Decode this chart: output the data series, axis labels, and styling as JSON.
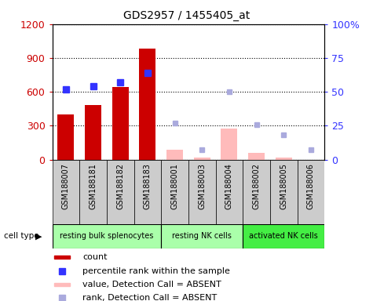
{
  "title": "GDS2957 / 1455405_at",
  "samples": [
    "GSM188007",
    "GSM188181",
    "GSM188182",
    "GSM188183",
    "GSM188001",
    "GSM188003",
    "GSM188004",
    "GSM188002",
    "GSM188005",
    "GSM188006"
  ],
  "cell_types": [
    {
      "label": "resting bulk splenocytes",
      "start": 0,
      "end": 3
    },
    {
      "label": "resting NK cells",
      "start": 4,
      "end": 6
    },
    {
      "label": "activated NK cells",
      "start": 7,
      "end": 9
    }
  ],
  "cell_type_colors": [
    "#aaffaa",
    "#aaffaa",
    "#44ee44"
  ],
  "count_values": [
    400,
    480,
    640,
    980,
    null,
    null,
    null,
    null,
    null,
    null
  ],
  "percentile_values": [
    52,
    54,
    57,
    64,
    null,
    null,
    null,
    null,
    null,
    null
  ],
  "absent_value_values": [
    null,
    null,
    null,
    null,
    90,
    15,
    275,
    60,
    15,
    null
  ],
  "absent_rank_values": [
    null,
    null,
    null,
    null,
    27,
    7,
    50,
    26,
    18,
    7
  ],
  "ylim_left": [
    0,
    1200
  ],
  "ylim_right": [
    0,
    100
  ],
  "yticks_left": [
    0,
    300,
    600,
    900,
    1200
  ],
  "yticks_right": [
    0,
    25,
    50,
    75,
    100
  ],
  "count_color": "#cc0000",
  "percentile_color": "#3333ff",
  "absent_value_color": "#ffbbbb",
  "absent_rank_color": "#aaaadd",
  "sample_bg_color": "#cccccc",
  "legend_items": [
    {
      "label": "count",
      "color": "#cc0000",
      "type": "bar"
    },
    {
      "label": "percentile rank within the sample",
      "color": "#3333ff",
      "type": "square"
    },
    {
      "label": "value, Detection Call = ABSENT",
      "color": "#ffbbbb",
      "type": "bar"
    },
    {
      "label": "rank, Detection Call = ABSENT",
      "color": "#aaaadd",
      "type": "square"
    }
  ]
}
